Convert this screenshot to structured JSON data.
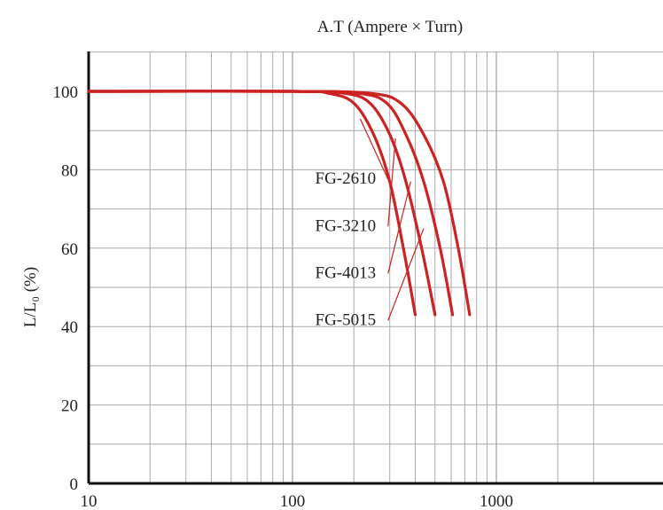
{
  "chart_data": {
    "type": "line",
    "title": "A.T  (Ampere × Turn)",
    "xlabel": "",
    "ylabel": "L/L₀ (%)",
    "xscale": "log",
    "xlim": [
      10,
      3000
    ],
    "ylim": [
      0,
      110
    ],
    "xticks": [
      10,
      100,
      1000
    ],
    "xtick_labels": [
      "10",
      "100",
      "1000"
    ],
    "yticks": [
      0,
      20,
      40,
      60,
      80,
      100
    ],
    "ytick_labels": [
      "0",
      "20",
      "40",
      "60",
      "80",
      "100"
    ],
    "grid": true,
    "series": [
      {
        "name": "FG-2610",
        "x": [
          10,
          100,
          150,
          200,
          250,
          300,
          350,
          400
        ],
        "y": [
          100,
          100,
          99.5,
          97,
          89,
          77,
          60,
          43
        ],
        "label_x": 182,
        "label_y": 78
      },
      {
        "name": "FG-3210",
        "x": [
          10,
          100,
          180,
          240,
          300,
          360,
          430,
          500
        ],
        "y": [
          100,
          100,
          99.5,
          97,
          89,
          77,
          60,
          43
        ],
        "label_x": 182,
        "label_y": 66
      },
      {
        "name": "FG-4013",
        "x": [
          10,
          100,
          210,
          290,
          360,
          440,
          530,
          610
        ],
        "y": [
          100,
          100,
          99.5,
          97,
          89,
          77,
          60,
          43
        ],
        "label_x": 182,
        "label_y": 54
      },
      {
        "name": "FG-5015",
        "x": [
          10,
          100,
          240,
          340,
          440,
          550,
          650,
          740
        ],
        "y": [
          100,
          100,
          99.5,
          97,
          89,
          77,
          60,
          43
        ],
        "label_x": 182,
        "label_y": 42
      }
    ],
    "leader_targets": [
      {
        "x": 215,
        "y": 93
      },
      {
        "x": 320,
        "y": 88
      },
      {
        "x": 380,
        "y": 77
      },
      {
        "x": 440,
        "y": 65
      }
    ],
    "colors": {
      "line": "#cc2222",
      "grid": "#aaaaaa",
      "axis": "#111111",
      "text": "#222222"
    }
  }
}
